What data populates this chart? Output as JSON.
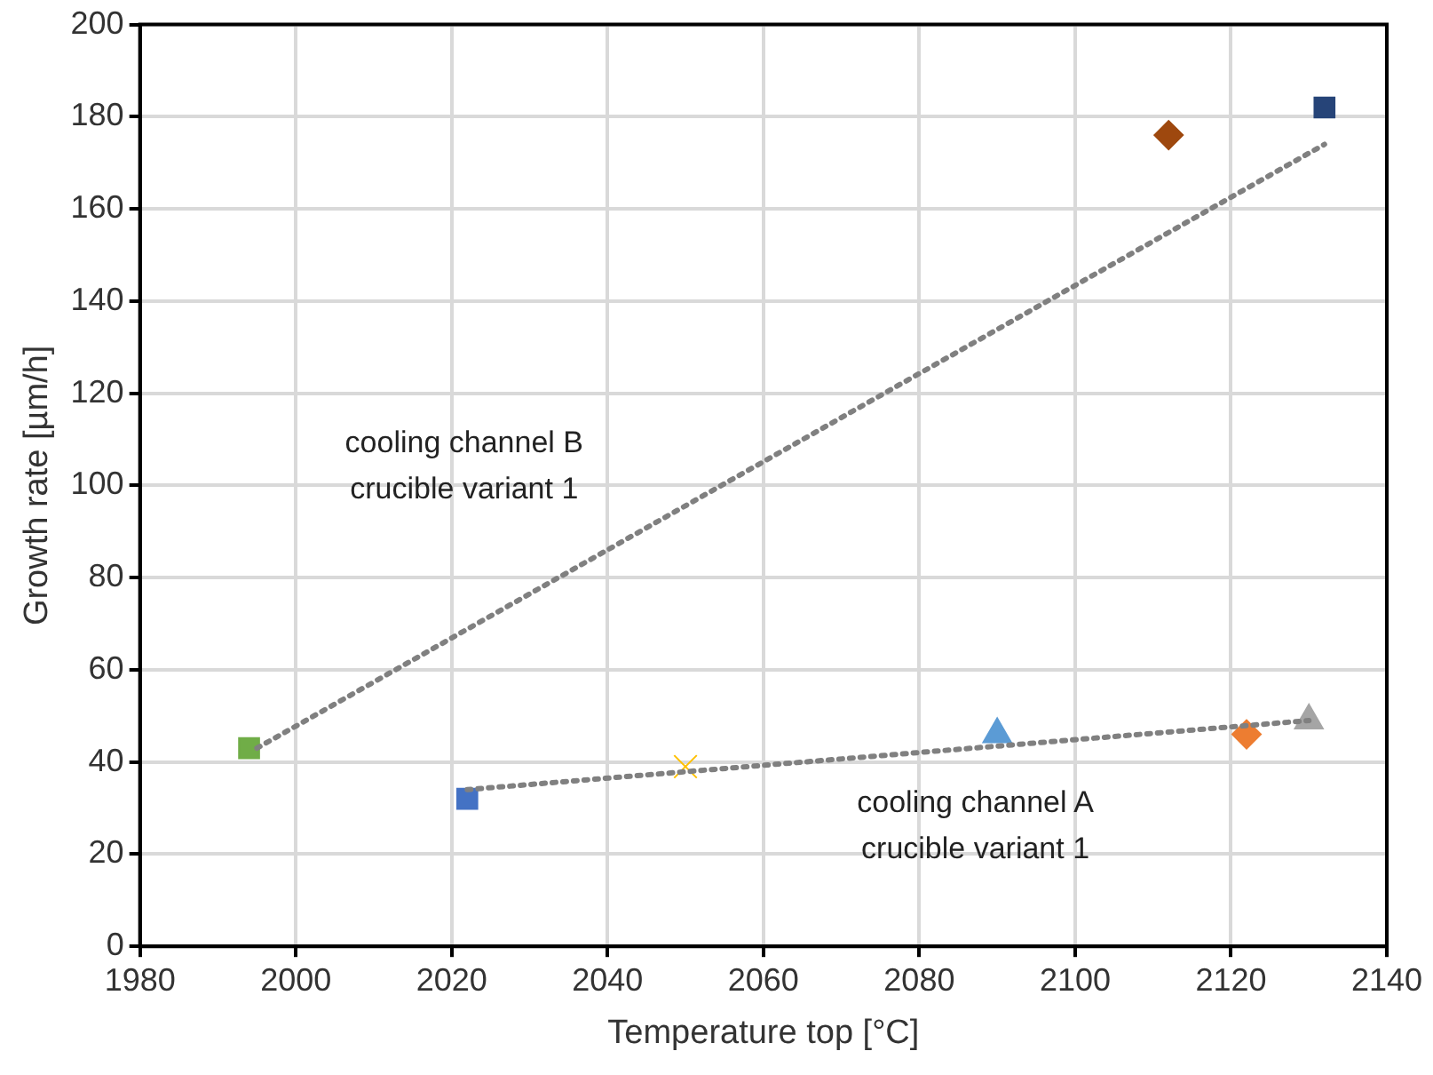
{
  "chart_data": {
    "type": "scatter",
    "xlabel": "Temperature top [°C]",
    "ylabel": "Growth rate [µm/h]",
    "xlim": [
      1980,
      2140
    ],
    "xticks": [
      1980,
      2000,
      2020,
      2040,
      2060,
      2080,
      2100,
      2120,
      2140
    ],
    "ylim": [
      0,
      200
    ],
    "yticks": [
      0,
      20,
      40,
      60,
      80,
      100,
      120,
      140,
      160,
      180,
      200
    ],
    "grid": true,
    "legend": false,
    "series": [
      {
        "type": "line",
        "color": "#808080",
        "line_style": "dotted",
        "marker": "none",
        "x": [
          1995,
          2132
        ],
        "values": [
          43,
          174
        ]
      },
      {
        "type": "line",
        "color": "#808080",
        "line_style": "dotted",
        "marker": "none",
        "x": [
          2022,
          2130
        ],
        "values": [
          34,
          49
        ]
      },
      {
        "color": "#70ad47",
        "marker": "square",
        "x": [
          1994
        ],
        "values": [
          43
        ]
      },
      {
        "color": "#4472c4",
        "marker": "square",
        "x": [
          2022
        ],
        "values": [
          32
        ]
      },
      {
        "color": "#ffc000",
        "marker": "cross",
        "x": [
          2050
        ],
        "values": [
          39
        ]
      },
      {
        "color": "#5b9bd5",
        "marker": "triangle",
        "x": [
          2090
        ],
        "values": [
          46
        ]
      },
      {
        "color": "#ed7d31",
        "marker": "diamond",
        "x": [
          2122
        ],
        "values": [
          46
        ]
      },
      {
        "color": "#a5a5a5",
        "marker": "triangle",
        "x": [
          2130
        ],
        "values": [
          49
        ]
      },
      {
        "color": "#9e480e",
        "marker": "diamond",
        "x": [
          2112
        ],
        "values": [
          176
        ]
      },
      {
        "color": "#264478",
        "marker": "square",
        "x": [
          2132
        ],
        "values": [
          182
        ]
      }
    ],
    "annotations": [
      "cooling channel B\ncrucible variant 1",
      "cooling channel A\ncrucible variant 1"
    ]
  }
}
